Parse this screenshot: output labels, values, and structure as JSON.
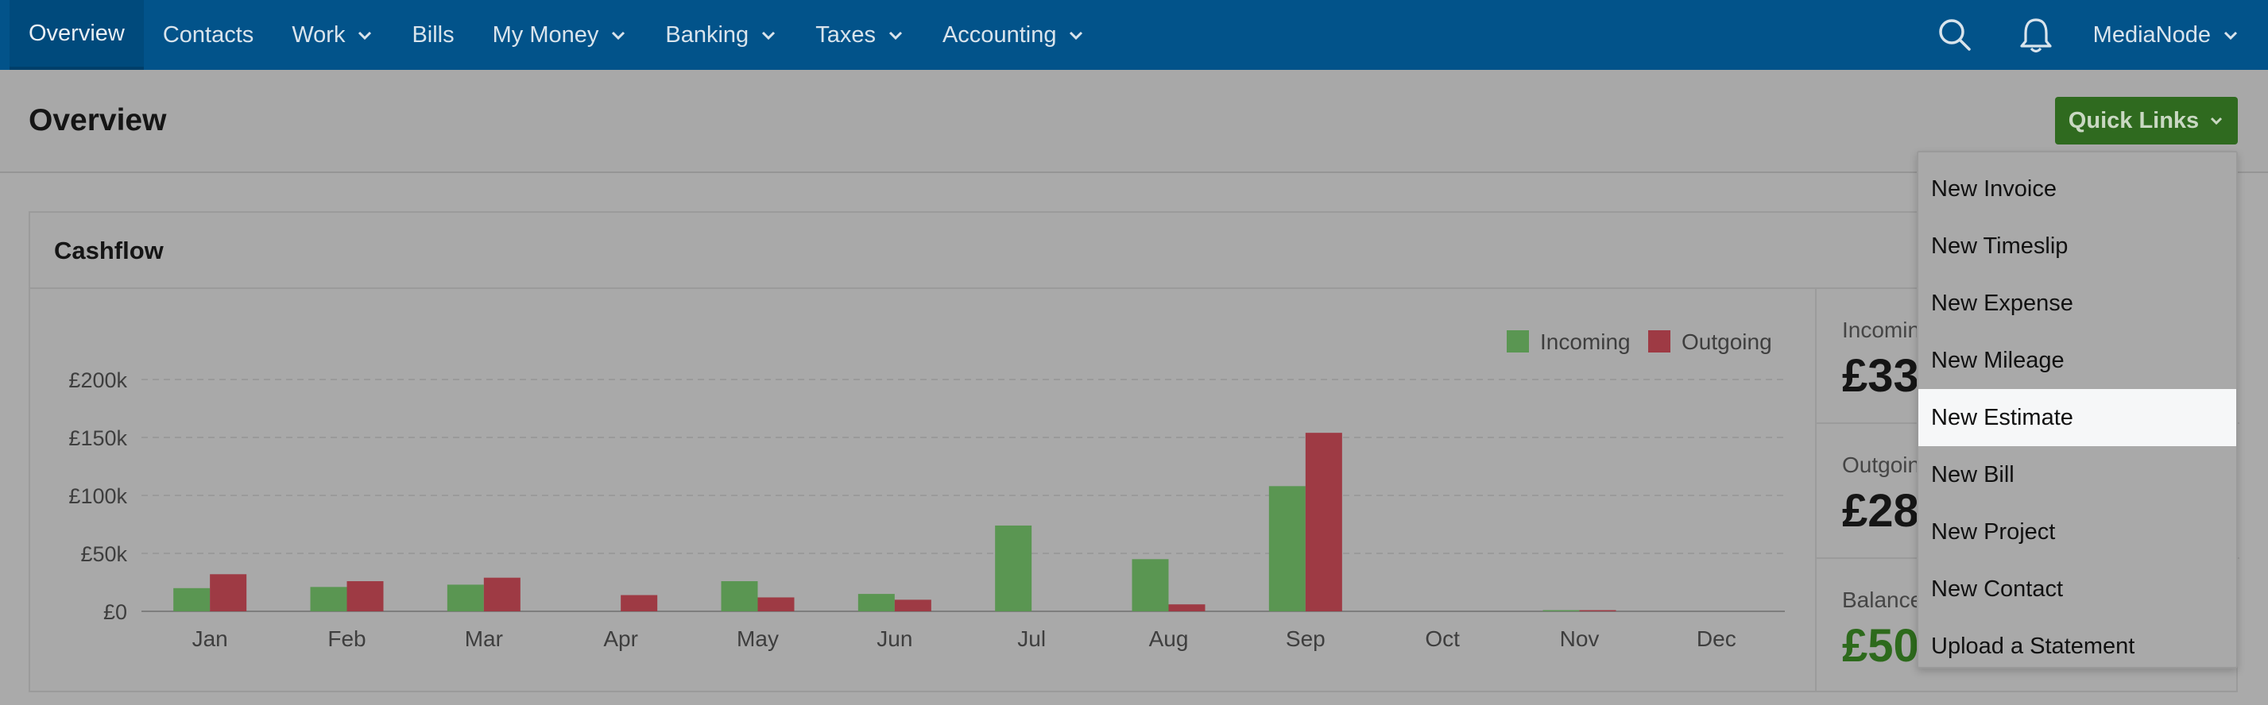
{
  "nav": {
    "items": [
      {
        "label": "Overview",
        "active": true,
        "has_menu": false
      },
      {
        "label": "Contacts",
        "has_menu": false
      },
      {
        "label": "Work",
        "has_menu": true
      },
      {
        "label": "Bills",
        "has_menu": false
      },
      {
        "label": "My Money",
        "has_menu": true
      },
      {
        "label": "Banking",
        "has_menu": true
      },
      {
        "label": "Taxes",
        "has_menu": true
      },
      {
        "label": "Accounting",
        "has_menu": true
      }
    ],
    "search_icon": "search-icon",
    "notifications_icon": "bell-icon",
    "account_label": "MediaNode"
  },
  "header": {
    "title": "Overview",
    "quick_links_label": "Quick Links"
  },
  "cashflow": {
    "title": "Cashflow",
    "stats": [
      {
        "label": "Incoming",
        "value": "£33"
      },
      {
        "label": "Outgoing",
        "value": "£28"
      },
      {
        "label": "Balance",
        "value": "£50"
      }
    ]
  },
  "quick_links_menu": {
    "items": [
      "New Invoice",
      "New Timeslip",
      "New Expense",
      "New Mileage",
      "New Estimate",
      "New Bill",
      "New Project",
      "New Contact",
      "Upload a Statement"
    ],
    "highlighted_index": 4
  },
  "colors": {
    "nav_bg": "#02538a",
    "incoming": "#5a9652",
    "outgoing": "#9e3a44",
    "quick_links_bg": "#2f6a1f"
  },
  "chart_data": {
    "type": "bar",
    "title": "Cashflow",
    "categories": [
      "Jan",
      "Feb",
      "Mar",
      "Apr",
      "May",
      "Jun",
      "Jul",
      "Aug",
      "Sep",
      "Oct",
      "Nov",
      "Dec"
    ],
    "series": [
      {
        "name": "Incoming",
        "values": [
          20000,
          21000,
          23000,
          0,
          26000,
          15000,
          74000,
          45000,
          108000,
          0,
          1000,
          0
        ]
      },
      {
        "name": "Outgoing",
        "values": [
          32000,
          26000,
          29000,
          14000,
          12000,
          10000,
          0,
          6000,
          154000,
          0,
          1000,
          0
        ]
      }
    ],
    "yticks": [
      "£0",
      "£50k",
      "£100k",
      "£150k",
      "£200k"
    ],
    "ylim": [
      0,
      200000
    ],
    "grid": true,
    "legend": "top-right"
  }
}
